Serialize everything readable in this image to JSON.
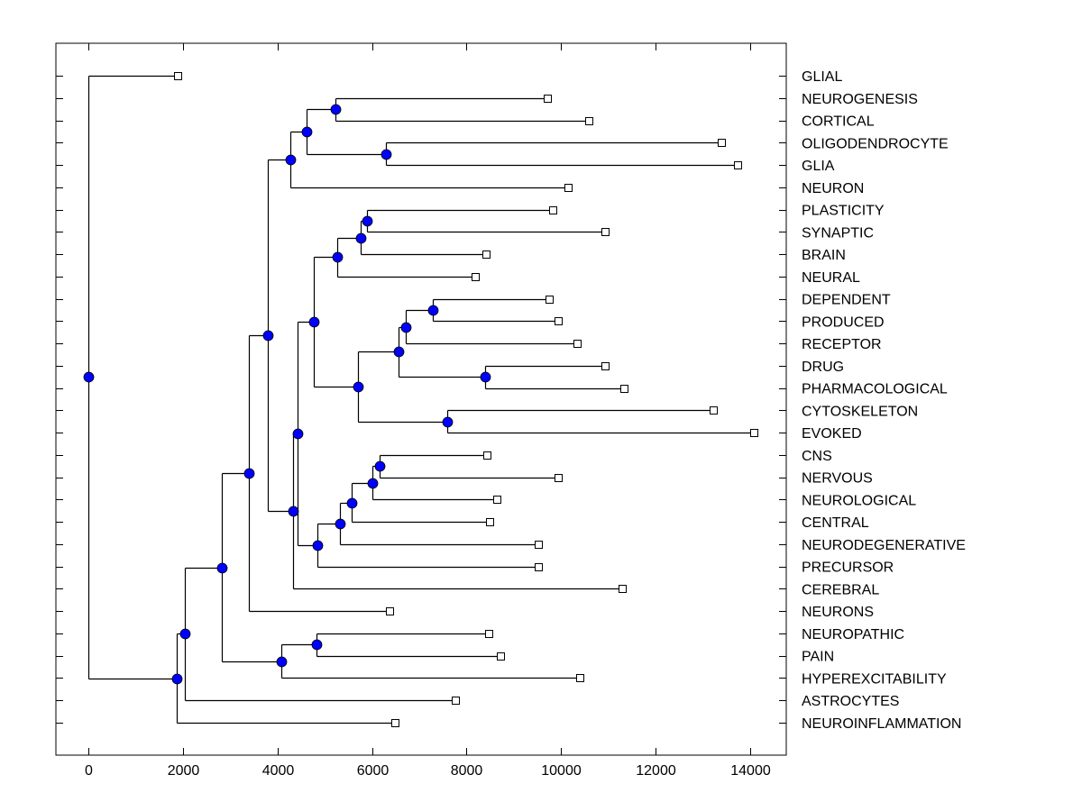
{
  "chart_data": {
    "type": "dendrogram",
    "title": "",
    "xlabel": "",
    "ylabel": "",
    "xlim": [
      -700,
      14700
    ],
    "xticks": [
      0,
      2000,
      4000,
      6000,
      8000,
      10000,
      12000,
      14000
    ],
    "xtick_labels": [
      "0",
      "2000",
      "4000",
      "6000",
      "8000",
      "10000",
      "12000",
      "14000"
    ],
    "grid": false,
    "legend": "none",
    "leaf_label_position": "right",
    "colors": {
      "node_fill": "#0000ff",
      "line": "#000000",
      "leaf_marker_fill": "#ffffff"
    },
    "leaves": [
      {
        "id": "GLIAL",
        "label": "GLIAL",
        "value": 1890
      },
      {
        "id": "NEUROGENESIS",
        "label": "NEUROGENESIS",
        "value": 9710
      },
      {
        "id": "CORTICAL",
        "label": "CORTICAL",
        "value": 10585
      },
      {
        "id": "OLIGODENDROCYTE",
        "label": "OLIGODENDROCYTE",
        "value": 13390
      },
      {
        "id": "GLIA",
        "label": "GLIA",
        "value": 13730
      },
      {
        "id": "NEURON",
        "label": "NEURON",
        "value": 10150
      },
      {
        "id": "PLASTICITY",
        "label": "PLASTICITY",
        "value": 9820
      },
      {
        "id": "SYNAPTIC",
        "label": "SYNAPTIC",
        "value": 10930
      },
      {
        "id": "BRAIN",
        "label": "BRAIN",
        "value": 8410
      },
      {
        "id": "NEURAL",
        "label": "NEURAL",
        "value": 8180
      },
      {
        "id": "DEPENDENT",
        "label": "DEPENDENT",
        "value": 9750
      },
      {
        "id": "PRODUCED",
        "label": "PRODUCED",
        "value": 9940
      },
      {
        "id": "RECEPTOR",
        "label": "RECEPTOR",
        "value": 10340
      },
      {
        "id": "DRUG",
        "label": "DRUG",
        "value": 10930
      },
      {
        "id": "PHARMACOLOGICAL",
        "label": "PHARMACOLOGICAL",
        "value": 11330
      },
      {
        "id": "CYTOSKELETON",
        "label": "CYTOSKELETON",
        "value": 13220
      },
      {
        "id": "EVOKED",
        "label": "EVOKED",
        "value": 14080
      },
      {
        "id": "CNS",
        "label": "CNS",
        "value": 8430
      },
      {
        "id": "NERVOUS",
        "label": "NERVOUS",
        "value": 9940
      },
      {
        "id": "NEUROLOGICAL",
        "label": "NEUROLOGICAL",
        "value": 8640
      },
      {
        "id": "CENTRAL",
        "label": "CENTRAL",
        "value": 8490
      },
      {
        "id": "NEURODEGENERATIVE",
        "label": "NEURODEGENERATIVE",
        "value": 9520
      },
      {
        "id": "PRECURSOR",
        "label": "PRECURSOR",
        "value": 9520
      },
      {
        "id": "CEREBRAL",
        "label": "CEREBRAL",
        "value": 11290
      },
      {
        "id": "NEURONS",
        "label": "NEURONS",
        "value": 6370
      },
      {
        "id": "NEUROPATHIC",
        "label": "NEUROPATHIC",
        "value": 8470
      },
      {
        "id": "PAIN",
        "label": "PAIN",
        "value": 8720
      },
      {
        "id": "HYPEREXCITABILITY",
        "label": "HYPEREXCITABILITY",
        "value": 10400
      },
      {
        "id": "ASTROCYTES",
        "label": "ASTROCYTES",
        "value": 7760
      },
      {
        "id": "NEUROINFLAMMATION",
        "label": "NEUROINFLAMMATION",
        "value": 6480
      }
    ],
    "nodes": [
      {
        "id": "n1",
        "value": 5226,
        "children": [
          "NEUROGENESIS",
          "CORTICAL"
        ]
      },
      {
        "id": "n2",
        "value": 6294,
        "children": [
          "OLIGODENDROCYTE",
          "GLIA"
        ]
      },
      {
        "id": "n3",
        "value": 4616,
        "children": [
          "n1",
          "n2"
        ]
      },
      {
        "id": "n4",
        "value": 4272,
        "children": [
          "n3",
          "NEURON"
        ]
      },
      {
        "id": "n5",
        "value": 5894,
        "children": [
          "PLASTICITY",
          "SYNAPTIC"
        ]
      },
      {
        "id": "n6",
        "value": 5760,
        "children": [
          "n5",
          "BRAIN"
        ]
      },
      {
        "id": "n7",
        "value": 5264,
        "children": [
          "n6",
          "NEURAL"
        ]
      },
      {
        "id": "n8",
        "value": 7286,
        "children": [
          "DEPENDENT",
          "PRODUCED"
        ]
      },
      {
        "id": "n9",
        "value": 6714,
        "children": [
          "n8",
          "RECEPTOR"
        ]
      },
      {
        "id": "n10",
        "value": 8392,
        "children": [
          "DRUG",
          "PHARMACOLOGICAL"
        ]
      },
      {
        "id": "n11",
        "value": 6561,
        "children": [
          "n9",
          "n10"
        ]
      },
      {
        "id": "n12",
        "value": 7591,
        "children": [
          "CYTOSKELETON",
          "EVOKED"
        ]
      },
      {
        "id": "n13",
        "value": 5703,
        "children": [
          "n11",
          "n12"
        ]
      },
      {
        "id": "n14",
        "value": 4768,
        "children": [
          "n7",
          "n13"
        ]
      },
      {
        "id": "n15",
        "value": 6160,
        "children": [
          "CNS",
          "NERVOUS"
        ]
      },
      {
        "id": "n16",
        "value": 6008,
        "children": [
          "n15",
          "NEUROLOGICAL"
        ]
      },
      {
        "id": "n17",
        "value": 5569,
        "children": [
          "n16",
          "CENTRAL"
        ]
      },
      {
        "id": "n18",
        "value": 5321,
        "children": [
          "n17",
          "NEURODEGENERATIVE"
        ]
      },
      {
        "id": "n19",
        "value": 4845,
        "children": [
          "n18",
          "PRECURSOR"
        ]
      },
      {
        "id": "n20",
        "value": 4425,
        "children": [
          "n14",
          "n19"
        ]
      },
      {
        "id": "n21",
        "value": 4330,
        "children": [
          "n20",
          "CEREBRAL"
        ]
      },
      {
        "id": "n22",
        "value": 3796,
        "children": [
          "n4",
          "n21"
        ]
      },
      {
        "id": "n23",
        "value": 3395,
        "children": [
          "n22",
          "NEURONS"
        ]
      },
      {
        "id": "n24",
        "value": 4826,
        "children": [
          "NEUROPATHIC",
          "PAIN"
        ]
      },
      {
        "id": "n25",
        "value": 4082,
        "children": [
          "n24",
          "HYPEREXCITABILITY"
        ]
      },
      {
        "id": "n26",
        "value": 2823,
        "children": [
          "n23",
          "n25"
        ]
      },
      {
        "id": "n27",
        "value": 2041,
        "children": [
          "n26",
          "ASTROCYTES"
        ]
      },
      {
        "id": "n28",
        "value": 1869,
        "children": [
          "n27",
          "NEUROINFLAMMATION"
        ]
      },
      {
        "id": "n29",
        "value": 0,
        "children": [
          "GLIAL",
          "n28"
        ]
      }
    ],
    "root": "n29"
  }
}
